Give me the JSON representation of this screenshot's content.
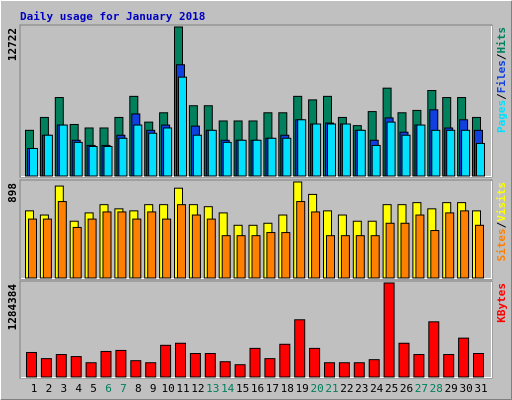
{
  "title": "Daily usage for January 2018",
  "legend_separator": "/",
  "chart_data": [
    {
      "type": "bar",
      "ylim": [
        0,
        12722
      ],
      "yticks": [
        12722
      ],
      "series": [
        {
          "name": "Hits",
          "color": "#00805c",
          "values": [
            3900,
            5000,
            6700,
            4400,
            4100,
            4100,
            5000,
            6800,
            4600,
            5400,
            12722,
            6000,
            6000,
            4700,
            4700,
            4700,
            5400,
            5400,
            6800,
            6500,
            6800,
            5000,
            4300,
            5500,
            7500,
            5400,
            5600,
            7300,
            6700,
            6700,
            5000
          ]
        },
        {
          "name": "Files",
          "color": "#1040e0",
          "values": [
            2350,
            3480,
            4350,
            3050,
            2610,
            2610,
            3480,
            5300,
            3900,
            4350,
            9500,
            4260,
            3900,
            3050,
            3050,
            3050,
            3220,
            3480,
            4800,
            4440,
            4520,
            4440,
            3900,
            3050,
            4960,
            3740,
            4350,
            5650,
            4100,
            4800,
            3900
          ]
        },
        {
          "name": "Pages",
          "color": "#00e0ff",
          "values": [
            2350,
            3480,
            4350,
            2870,
            2520,
            2520,
            3220,
            4350,
            3650,
            4100,
            8440,
            3480,
            3900,
            2870,
            3050,
            3050,
            3220,
            3220,
            4800,
            4440,
            4440,
            4440,
            3900,
            2610,
            4600,
            3480,
            4350,
            3900,
            3900,
            3900,
            2780
          ]
        }
      ]
    },
    {
      "type": "bar",
      "ylim": [
        0,
        898
      ],
      "yticks": [
        898
      ],
      "series": [
        {
          "name": "Visits",
          "color": "#ffff00",
          "values": [
            628,
            589,
            860,
            531,
            609,
            686,
            647,
            628,
            686,
            686,
            840,
            686,
            667,
            609,
            493,
            493,
            512,
            589,
            898,
            782,
            628,
            589,
            531,
            531,
            686,
            686,
            705,
            647,
            705,
            705,
            628
          ]
        },
        {
          "name": "Sites",
          "color": "#ff8000",
          "values": [
            551,
            551,
            715,
            473,
            551,
            618,
            618,
            551,
            618,
            551,
            686,
            589,
            551,
            396,
            396,
            396,
            425,
            425,
            715,
            618,
            396,
            396,
            396,
            396,
            512,
            512,
            589,
            444,
            609,
            628,
            493
          ]
        }
      ]
    },
    {
      "type": "bar",
      "ylim": [
        0,
        1284384
      ],
      "yticks": [
        1284384
      ],
      "categories": [
        "1",
        "2",
        "3",
        "4",
        "5",
        "6",
        "7",
        "8",
        "9",
        "10",
        "11",
        "12",
        "13",
        "14",
        "15",
        "16",
        "17",
        "18",
        "19",
        "20",
        "21",
        "22",
        "23",
        "24",
        "25",
        "26",
        "27",
        "28",
        "29",
        "30",
        "31"
      ],
      "category_colors": [
        "#000000",
        "#000000",
        "#000000",
        "#000000",
        "#000000",
        "#00805c",
        "#00805c",
        "#000000",
        "#000000",
        "#000000",
        "#000000",
        "#000000",
        "#00805c",
        "#00805c",
        "#000000",
        "#000000",
        "#000000",
        "#000000",
        "#000000",
        "#00805c",
        "#00805c",
        "#000000",
        "#000000",
        "#000000",
        "#000000",
        "#000000",
        "#00805c",
        "#00805c",
        "#000000",
        "#000000",
        "#000000"
      ],
      "series": [
        {
          "name": "KBytes",
          "color": "#ff0000",
          "values": [
            335000,
            251000,
            307000,
            279000,
            195000,
            349000,
            363000,
            223000,
            195000,
            433000,
            461000,
            321000,
            321000,
            209000,
            168000,
            391000,
            251000,
            447000,
            782000,
            391000,
            195000,
            195000,
            195000,
            237000,
            1284384,
            461000,
            307000,
            754000,
            307000,
            531000,
            321000
          ]
        }
      ]
    }
  ]
}
